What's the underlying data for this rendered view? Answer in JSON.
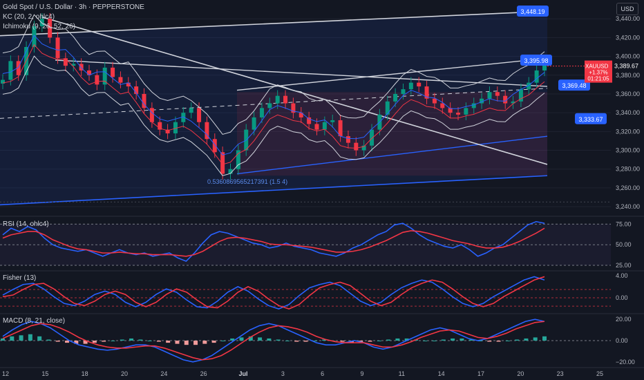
{
  "header": {
    "title": "Gold Spot / U.S. Dollar · 3h · PEPPERSTONE",
    "kc": "KC (20, 2, ohlc4)",
    "ichimoku": "Ichimoku (9, 26, 52, 26)",
    "currency_button": "USD"
  },
  "colors": {
    "bg": "#131722",
    "blue": "#2962ff",
    "red": "#f23645",
    "green": "#089981",
    "grid": "#1f2330"
  },
  "chart_data": [
    {
      "type": "candlestick",
      "title": "Gold Spot / U.S. Dollar · 3h · PEPPERSTONE",
      "symbol": "XAUUSD",
      "ylim": [
        3232,
        3460
      ],
      "y_ticks": [
        3240,
        3260,
        3280,
        3300,
        3320,
        3340,
        3360,
        3380,
        3400,
        3420,
        3440
      ],
      "y_tick_labels": [
        "3,240.00",
        "3,260.00",
        "3,280.00",
        "3,300.00",
        "3,320.00",
        "3,340.00",
        "3,360.00",
        "3,380.00",
        "3,400.00",
        "3,420.00",
        "3,440.00"
      ],
      "x_ticks": [
        "12",
        "15",
        "18",
        "20",
        "24",
        "26",
        "Jul",
        "3",
        "6",
        "9",
        "11",
        "14",
        "17",
        "20",
        "23",
        "25"
      ],
      "last_price": {
        "symbol": "XAUUSD",
        "price": "3,389.67",
        "change": "+1.37%",
        "countdown": "01:21:05",
        "value": 3389.67
      },
      "price_labels": [
        {
          "label": "3,448.19",
          "value": 3448.19
        },
        {
          "label": "3,395.98",
          "value": 3395.98
        },
        {
          "label": "3,369.48",
          "value": 3369.48
        },
        {
          "label": "3,333.67",
          "value": 3333.67
        }
      ],
      "annotations": [
        "0.5360869565217391 (1.5 4)"
      ],
      "close_approx": [
        3375,
        3395,
        3380,
        3410,
        3432,
        3440,
        3420,
        3398,
        3390,
        3392,
        3385,
        3380,
        3370,
        3388,
        3378,
        3372,
        3368,
        3360,
        3345,
        3330,
        3322,
        3318,
        3330,
        3340,
        3345,
        3330,
        3312,
        3298,
        3275,
        3280,
        3300,
        3322,
        3335,
        3345,
        3350,
        3358,
        3350,
        3340,
        3335,
        3328,
        3322,
        3330,
        3332,
        3315,
        3308,
        3300,
        3305,
        3322,
        3338,
        3352,
        3360,
        3365,
        3372,
        3368,
        3355,
        3350,
        3345,
        3340,
        3338,
        3345,
        3350,
        3355,
        3362,
        3358,
        3350,
        3352,
        3365,
        3372,
        3385,
        3392
      ]
    },
    {
      "type": "line",
      "title": "RSI (14, ohlc4)",
      "ylim": [
        20,
        82
      ],
      "y_ticks": [
        25,
        50,
        75
      ],
      "y_tick_labels": [
        "25.00",
        "50.00",
        "75.00"
      ],
      "series": [
        {
          "values": [
            62,
            70,
            66,
            72,
            68,
            58,
            50,
            46,
            44,
            42,
            44,
            40,
            36,
            40,
            44,
            40,
            38,
            40,
            36,
            38,
            40,
            34,
            30,
            40,
            52,
            62,
            66,
            64,
            60,
            56,
            52,
            50,
            46,
            48,
            52,
            48,
            46,
            44,
            40,
            38,
            36,
            40,
            46,
            50,
            56,
            62,
            66,
            74,
            76,
            70,
            62,
            56,
            52,
            48,
            46,
            50,
            44,
            36,
            40,
            46,
            50,
            58,
            66,
            74,
            78,
            76
          ]
        },
        {
          "values": [
            58,
            62,
            64,
            66,
            66,
            62,
            56,
            52,
            48,
            45,
            44,
            42,
            40,
            40,
            41,
            40,
            39,
            39,
            38,
            38,
            38,
            37,
            36,
            38,
            42,
            48,
            54,
            58,
            59,
            58,
            56,
            54,
            51,
            50,
            50,
            49,
            48,
            47,
            45,
            43,
            41,
            41,
            42,
            44,
            47,
            51,
            55,
            60,
            65,
            67,
            66,
            64,
            61,
            58,
            55,
            53,
            51,
            48,
            46,
            46,
            47,
            50,
            54,
            59,
            64,
            70
          ]
        }
      ]
    },
    {
      "type": "line",
      "title": "Fisher (13)",
      "ylim": [
        -2.6,
        4.6
      ],
      "y_ticks": [
        0,
        4
      ],
      "y_tick_labels": [
        "0.00",
        "4.00"
      ],
      "series": [
        {
          "values": [
            0.5,
            1.5,
            2.4,
            2.6,
            1.6,
            0.2,
            -1.0,
            -1.4,
            -0.6,
            0.6,
            1.2,
            0.6,
            -0.8,
            -1.6,
            -0.8,
            0.6,
            1.6,
            1.0,
            -0.4,
            -1.6,
            -1.8,
            -0.6,
            1.0,
            2.0,
            1.2,
            -0.2,
            -1.4,
            -2.0,
            -1.2,
            0.4,
            1.8,
            2.4,
            2.8,
            2.2,
            0.8,
            -0.6,
            -1.4,
            -0.8,
            0.6,
            1.8,
            2.6,
            3.2,
            2.8,
            1.6,
            0.2,
            -1.0,
            -1.6,
            -1.0,
            0.2,
            1.2,
            2.2,
            3.2,
            3.8,
            3.2
          ]
        },
        {
          "values": [
            0.2,
            0.5,
            1.5,
            2.4,
            2.6,
            1.6,
            0.2,
            -1.0,
            -1.4,
            -0.6,
            0.6,
            1.2,
            0.6,
            -0.8,
            -1.6,
            -0.8,
            0.6,
            1.6,
            1.0,
            -0.4,
            -1.6,
            -1.8,
            -0.6,
            1.0,
            2.0,
            1.2,
            -0.2,
            -1.4,
            -2.0,
            -1.2,
            0.4,
            1.8,
            2.4,
            2.8,
            2.2,
            0.8,
            -0.6,
            -1.4,
            -0.8,
            0.6,
            1.8,
            2.6,
            3.2,
            2.8,
            1.6,
            0.2,
            -1.0,
            -1.6,
            -1.0,
            0.2,
            1.2,
            2.2,
            3.2,
            3.8
          ]
        }
      ]
    },
    {
      "type": "bar+line",
      "title": "MACD (8, 21, close)",
      "ylim": [
        -24,
        24
      ],
      "y_ticks": [
        -20,
        0,
        20
      ],
      "y_tick_labels": [
        "−20.00",
        "0.00",
        "20.00"
      ],
      "histogram": [
        2,
        4,
        5,
        6,
        4,
        1,
        -1,
        -2,
        -3,
        -3,
        -2,
        -1,
        0,
        1,
        2,
        1,
        0,
        -1,
        -2,
        -3,
        -4,
        -4,
        -3,
        -2,
        0,
        2,
        3,
        4,
        3,
        2,
        1,
        0,
        -1,
        -1,
        0,
        1,
        0,
        -1,
        -2,
        -2,
        -1,
        0,
        1,
        2,
        2,
        1,
        0,
        0,
        1,
        2,
        2,
        1,
        0,
        -1,
        -1,
        0,
        1,
        2,
        3,
        4
      ],
      "series": [
        {
          "values": [
            4,
            10,
            15,
            18,
            16,
            12,
            6,
            0,
            -4,
            -6,
            -8,
            -9,
            -8,
            -6,
            -4,
            -4,
            -6,
            -10,
            -14,
            -18,
            -20,
            -18,
            -14,
            -8,
            -2,
            4,
            10,
            14,
            16,
            14,
            10,
            6,
            2,
            -2,
            -4,
            -4,
            -2,
            0,
            -2,
            -6,
            -8,
            -6,
            -2,
            2,
            6,
            10,
            12,
            10,
            6,
            2,
            0,
            2,
            6,
            10,
            14,
            18,
            20,
            18
          ]
        },
        {
          "values": [
            2,
            6,
            10,
            14,
            16,
            15,
            12,
            8,
            3,
            -1,
            -4,
            -6,
            -7,
            -7,
            -6,
            -5,
            -5,
            -7,
            -10,
            -13,
            -16,
            -18,
            -17,
            -14,
            -9,
            -3,
            3,
            8,
            12,
            14,
            13,
            11,
            8,
            4,
            1,
            -1,
            -2,
            -2,
            -2,
            -4,
            -6,
            -6,
            -4,
            -1,
            3,
            6,
            9,
            10,
            9,
            6,
            3,
            2,
            4,
            7,
            11,
            14,
            17,
            18
          ]
        }
      ]
    }
  ]
}
